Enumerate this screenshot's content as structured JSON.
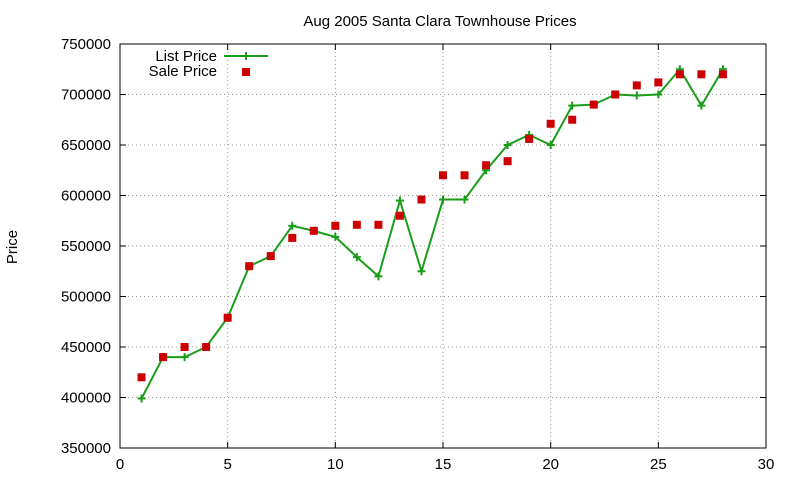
{
  "chart_data": {
    "type": "line",
    "title": "Aug 2005 Santa Clara Townhouse Prices",
    "xlabel": "",
    "ylabel": "Price",
    "xlim": [
      0,
      30
    ],
    "ylim": [
      350000,
      750000
    ],
    "xticks": [
      0,
      5,
      10,
      15,
      20,
      25,
      30
    ],
    "yticks": [
      350000,
      400000,
      450000,
      500000,
      550000,
      600000,
      650000,
      700000,
      750000
    ],
    "grid": true,
    "legend_position": "top-left",
    "series": [
      {
        "name": "List Price",
        "style": "linespoints",
        "marker": "plus",
        "color": "#1a9e1a",
        "x": [
          1,
          2,
          3,
          4,
          5,
          6,
          7,
          8,
          9,
          10,
          11,
          12,
          13,
          14,
          15,
          16,
          17,
          18,
          19,
          20,
          21,
          22,
          23,
          24,
          25,
          26,
          27,
          28
        ],
        "y": [
          399000,
          440000,
          440000,
          450000,
          479000,
          530000,
          540000,
          570000,
          565000,
          559000,
          539000,
          520000,
          595000,
          525000,
          596000,
          596000,
          625000,
          650000,
          660000,
          650000,
          689000,
          690000,
          700000,
          699000,
          700000,
          725000,
          689000,
          725000
        ]
      },
      {
        "name": "Sale Price",
        "style": "points",
        "marker": "square",
        "color": "#cc0000",
        "x": [
          1,
          2,
          3,
          4,
          5,
          6,
          7,
          8,
          9,
          10,
          11,
          12,
          13,
          14,
          15,
          16,
          17,
          18,
          19,
          20,
          21,
          22,
          23,
          24,
          25,
          26,
          27,
          28
        ],
        "y": [
          420000,
          440000,
          450000,
          450000,
          479000,
          530000,
          540000,
          558000,
          565000,
          570000,
          571000,
          571000,
          580000,
          596000,
          620000,
          620000,
          630000,
          634000,
          656000,
          671000,
          675000,
          690000,
          700000,
          709000,
          712000,
          720000,
          720000,
          720000
        ]
      }
    ]
  }
}
